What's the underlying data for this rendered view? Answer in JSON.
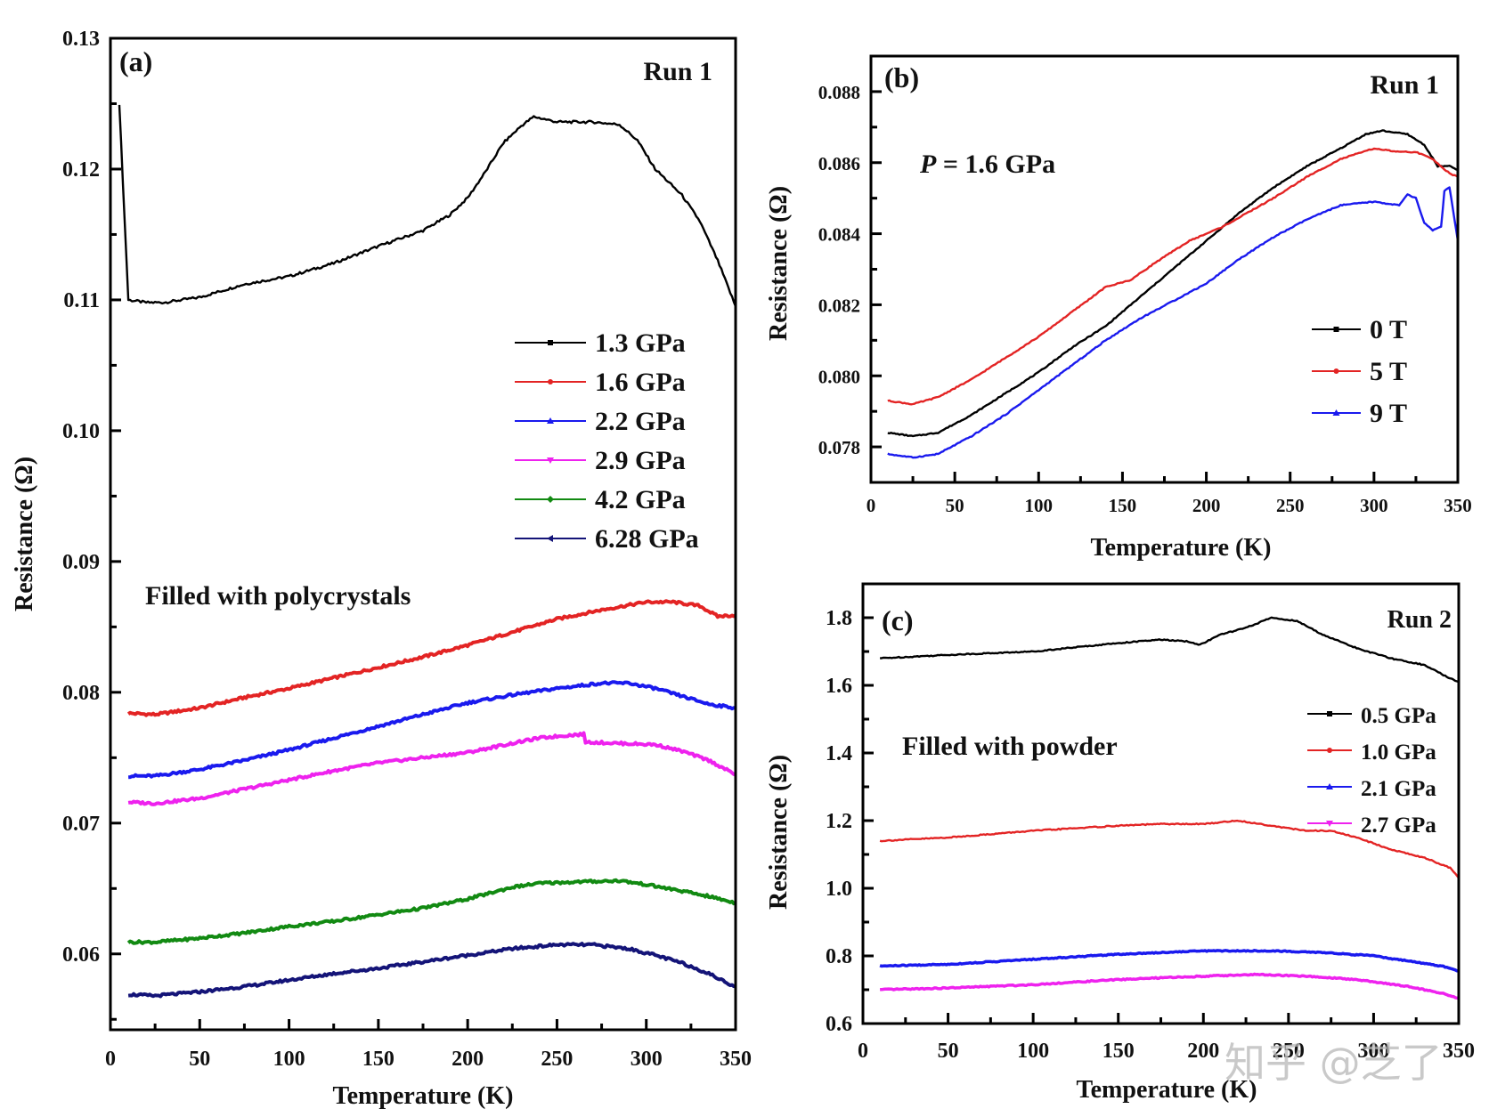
{
  "chart_data": [
    {
      "id": "a",
      "type": "line",
      "panel_label": "(a)",
      "run_label": "Run 1",
      "annotation": "Filled with polycrystals",
      "xlabel": "Temperature (K)",
      "ylabel": "Resistance (Ω)",
      "xlim": [
        0,
        350
      ],
      "ylim": [
        0.0542,
        0.13
      ],
      "xticks": [
        0,
        50,
        100,
        150,
        200,
        250,
        300,
        350
      ],
      "xtick_labels": [
        "0",
        "50",
        "100",
        "150",
        "200",
        "250",
        "300",
        "350"
      ],
      "yticks": [
        0.06,
        0.07,
        0.08,
        0.09,
        0.1,
        0.11,
        0.12,
        0.13
      ],
      "ytick_labels": [
        "0.06",
        "0.07",
        "0.08",
        "0.09",
        "0.10",
        "0.11",
        "0.12",
        "0.13"
      ],
      "legend_position": "right-middle",
      "series": [
        {
          "name": "1.3 GPa",
          "color": "#000000",
          "marker": "square",
          "x": [
            5,
            10,
            20,
            30,
            50,
            75,
            100,
            125,
            150,
            175,
            190,
            200,
            210,
            220,
            230,
            237,
            250,
            270,
            285,
            295,
            305,
            320,
            330,
            340,
            350
          ],
          "y": [
            0.125,
            0.11,
            0.1098,
            0.1098,
            0.1102,
            0.1112,
            0.1118,
            0.1128,
            0.1141,
            0.1153,
            0.1165,
            0.1178,
            0.1198,
            0.122,
            0.1233,
            0.124,
            0.1236,
            0.1236,
            0.1234,
            0.1222,
            0.12,
            0.118,
            0.116,
            0.113,
            0.1095
          ]
        },
        {
          "name": "1.6 GPa",
          "color": "#e32424",
          "marker": "circle",
          "x": [
            10,
            25,
            50,
            75,
            100,
            125,
            150,
            175,
            200,
            225,
            250,
            275,
            300,
            315,
            330,
            340,
            350
          ],
          "y": [
            0.0784,
            0.0783,
            0.0788,
            0.0796,
            0.0803,
            0.0811,
            0.0819,
            0.0827,
            0.0836,
            0.0846,
            0.0856,
            0.0863,
            0.0869,
            0.0869,
            0.0866,
            0.0858,
            0.0859
          ]
        },
        {
          "name": "2.2 GPa",
          "color": "#1a1aee",
          "marker": "triangle-up",
          "x": [
            10,
            25,
            50,
            75,
            100,
            125,
            150,
            175,
            200,
            225,
            250,
            275,
            290,
            305,
            320,
            335,
            350
          ],
          "y": [
            0.0736,
            0.0736,
            0.0741,
            0.0748,
            0.0756,
            0.0765,
            0.0774,
            0.0783,
            0.0792,
            0.0798,
            0.0803,
            0.0807,
            0.0807,
            0.0803,
            0.0797,
            0.0791,
            0.0788
          ]
        },
        {
          "name": "2.9 GPa",
          "color": "#ee22ee",
          "marker": "triangle-down",
          "x": [
            10,
            25,
            50,
            75,
            100,
            125,
            150,
            175,
            200,
            225,
            240,
            255,
            265,
            266,
            285,
            305,
            320,
            335,
            350
          ],
          "y": [
            0.0716,
            0.0715,
            0.0719,
            0.0726,
            0.0733,
            0.074,
            0.0746,
            0.075,
            0.0754,
            0.0761,
            0.0765,
            0.0767,
            0.0768,
            0.0762,
            0.0761,
            0.076,
            0.0755,
            0.0748,
            0.0737
          ]
        },
        {
          "name": "4.2 GPa",
          "color": "#128a12",
          "marker": "diamond",
          "x": [
            10,
            25,
            50,
            75,
            100,
            125,
            150,
            175,
            200,
            225,
            240,
            260,
            285,
            300,
            320,
            335,
            350
          ],
          "y": [
            0.0609,
            0.0609,
            0.0612,
            0.0616,
            0.0621,
            0.0625,
            0.063,
            0.0635,
            0.0642,
            0.0651,
            0.0654,
            0.0655,
            0.0656,
            0.0653,
            0.0648,
            0.0644,
            0.0639
          ]
        },
        {
          "name": "6.28 GPa",
          "color": "#141478",
          "marker": "triangle-left",
          "x": [
            10,
            25,
            50,
            75,
            100,
            125,
            150,
            175,
            200,
            225,
            250,
            270,
            290,
            305,
            320,
            335,
            345,
            350
          ],
          "y": [
            0.0569,
            0.0568,
            0.0571,
            0.0575,
            0.058,
            0.0585,
            0.0589,
            0.0594,
            0.0599,
            0.0604,
            0.0607,
            0.0607,
            0.0604,
            0.0599,
            0.0593,
            0.0585,
            0.0578,
            0.0575
          ]
        }
      ]
    },
    {
      "id": "b",
      "type": "line",
      "panel_label": "(b)",
      "run_label": "Run 1",
      "annotation_italic": "P",
      "annotation": " = 1.6 GPa",
      "xlabel": "Temperature (K)",
      "ylabel": "Resistance (Ω)",
      "xlim": [
        0,
        350
      ],
      "ylim": [
        0.077,
        0.089
      ],
      "xticks": [
        0,
        50,
        100,
        150,
        200,
        250,
        300,
        350
      ],
      "xtick_labels": [
        "0",
        "50",
        "100",
        "150",
        "200",
        "250",
        "300",
        "350"
      ],
      "yticks": [
        0.078,
        0.08,
        0.082,
        0.084,
        0.086,
        0.088
      ],
      "ytick_labels": [
        "0.078",
        "0.080",
        "0.082",
        "0.084",
        "0.086",
        "0.088"
      ],
      "legend_position": "right-middle",
      "series": [
        {
          "name": "0 T",
          "color": "#000000",
          "marker": "square",
          "x": [
            10,
            25,
            40,
            60,
            80,
            100,
            120,
            140,
            160,
            180,
            200,
            220,
            240,
            260,
            280,
            295,
            305,
            320,
            330,
            338,
            345,
            350
          ],
          "y": [
            0.0784,
            0.0783,
            0.0784,
            0.0789,
            0.0795,
            0.0801,
            0.0808,
            0.0814,
            0.0822,
            0.083,
            0.0838,
            0.0846,
            0.0853,
            0.0859,
            0.0864,
            0.0868,
            0.0869,
            0.0868,
            0.0865,
            0.0859,
            0.0859,
            0.0858
          ]
        },
        {
          "name": "5 T",
          "color": "#e32424",
          "marker": "circle",
          "x": [
            10,
            25,
            40,
            60,
            80,
            100,
            120,
            140,
            155,
            170,
            190,
            210,
            225,
            240,
            260,
            280,
            300,
            315,
            325,
            335,
            345,
            350
          ],
          "y": [
            0.0793,
            0.0792,
            0.0794,
            0.0799,
            0.0805,
            0.0811,
            0.0818,
            0.0825,
            0.0827,
            0.0832,
            0.0838,
            0.0842,
            0.0846,
            0.085,
            0.0856,
            0.0861,
            0.0864,
            0.0863,
            0.0863,
            0.0861,
            0.0857,
            0.0856
          ]
        },
        {
          "name": "9 T",
          "color": "#1a1aee",
          "marker": "triangle-up",
          "x": [
            10,
            25,
            40,
            60,
            80,
            100,
            120,
            140,
            160,
            180,
            200,
            220,
            240,
            260,
            280,
            300,
            315,
            320,
            325,
            330,
            335,
            340,
            342,
            345,
            350
          ],
          "y": [
            0.0778,
            0.0777,
            0.0778,
            0.0783,
            0.0789,
            0.0796,
            0.0803,
            0.081,
            0.0816,
            0.0821,
            0.0826,
            0.0833,
            0.0839,
            0.0844,
            0.0848,
            0.0849,
            0.0848,
            0.0851,
            0.085,
            0.0843,
            0.0841,
            0.0842,
            0.0852,
            0.0853,
            0.0838
          ]
        }
      ]
    },
    {
      "id": "c",
      "type": "line",
      "panel_label": "(c)",
      "run_label": "Run 2",
      "annotation": "Filled with powder",
      "xlabel": "Temperature (K)",
      "ylabel": "Resistance (Ω)",
      "xlim": [
        0,
        350
      ],
      "ylim": [
        0.6,
        1.9
      ],
      "xticks": [
        0,
        50,
        100,
        150,
        200,
        250,
        300,
        350
      ],
      "xtick_labels": [
        "0",
        "50",
        "100",
        "150",
        "200",
        "250",
        "300",
        "350"
      ],
      "yticks": [
        0.6,
        0.8,
        1.0,
        1.2,
        1.4,
        1.6,
        1.8
      ],
      "ytick_labels": [
        "0.6",
        "0.8",
        "1.0",
        "1.2",
        "1.4",
        "1.6",
        "1.8"
      ],
      "legend_position": "right-top",
      "series": [
        {
          "name": "0.5 GPa",
          "color": "#000000",
          "marker": "square",
          "x": [
            10,
            50,
            100,
            150,
            175,
            190,
            198,
            210,
            225,
            240,
            255,
            270,
            290,
            310,
            330,
            345,
            350
          ],
          "y": [
            1.68,
            1.69,
            1.7,
            1.725,
            1.735,
            1.73,
            1.72,
            1.75,
            1.77,
            1.8,
            1.79,
            1.75,
            1.71,
            1.68,
            1.66,
            1.62,
            1.61
          ]
        },
        {
          "name": "1.0 GPa",
          "color": "#e32424",
          "marker": "circle",
          "x": [
            10,
            50,
            100,
            150,
            175,
            200,
            220,
            240,
            260,
            275,
            290,
            310,
            330,
            345,
            350
          ],
          "y": [
            1.14,
            1.15,
            1.17,
            1.185,
            1.19,
            1.19,
            1.2,
            1.185,
            1.17,
            1.17,
            1.15,
            1.115,
            1.09,
            1.06,
            1.03
          ]
        },
        {
          "name": "2.1 GPa",
          "color": "#1a1aee",
          "marker": "triangle-up",
          "x": [
            10,
            50,
            100,
            150,
            200,
            240,
            270,
            300,
            320,
            340,
            350
          ],
          "y": [
            0.77,
            0.775,
            0.79,
            0.805,
            0.815,
            0.815,
            0.81,
            0.8,
            0.785,
            0.77,
            0.755
          ]
        },
        {
          "name": "2.7 GPa",
          "color": "#ee22ee",
          "marker": "triangle-down",
          "x": [
            10,
            50,
            100,
            150,
            200,
            230,
            260,
            290,
            320,
            340,
            350
          ],
          "y": [
            0.7,
            0.705,
            0.715,
            0.73,
            0.74,
            0.745,
            0.74,
            0.73,
            0.71,
            0.69,
            0.675
          ]
        }
      ]
    }
  ],
  "watermark": "知乎 @芝了"
}
